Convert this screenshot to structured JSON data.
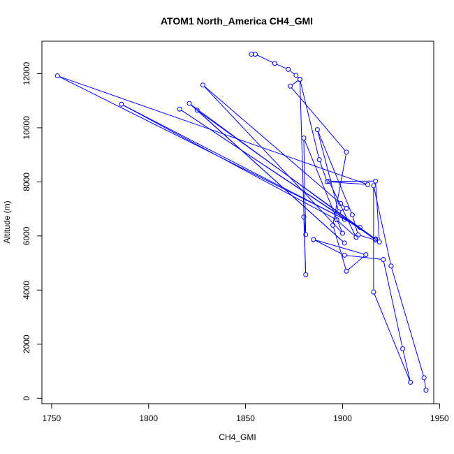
{
  "chart_data": {
    "type": "line",
    "title": "ATOM1 North_America CH4_GMI",
    "xlabel": "CH4_GMI",
    "ylabel": "Altitude (m)",
    "xlim": [
      1745,
      1947
    ],
    "ylim": [
      -200,
      13200
    ],
    "xticks": [
      1750,
      1800,
      1850,
      1900,
      1950
    ],
    "yticks": [
      0,
      2000,
      4000,
      6000,
      8000,
      10000,
      12000
    ],
    "grid": false,
    "legend": "none",
    "series": [
      {
        "color": "#0000ff",
        "marker": "open-circle",
        "points": [
          [
            1853,
            12720
          ],
          [
            1855,
            12720
          ],
          [
            1865,
            12380
          ],
          [
            1872,
            12160
          ],
          [
            1876,
            11940
          ],
          [
            1878,
            11790
          ],
          [
            1888,
            8820
          ],
          [
            1892,
            8010
          ],
          [
            1913,
            7900
          ],
          [
            1753,
            11920
          ],
          [
            1901,
            6620
          ],
          [
            1909,
            6320
          ],
          [
            1786,
            10870
          ],
          [
            1897,
            6600
          ],
          [
            1907,
            5950
          ],
          [
            1893,
            8020
          ],
          [
            1917,
            8030
          ],
          [
            1919,
            5780
          ],
          [
            1816,
            10690
          ],
          [
            1917,
            5890
          ],
          [
            1825,
            10650
          ],
          [
            1901,
            5740
          ],
          [
            1821,
            10900
          ],
          [
            1917,
            5850
          ],
          [
            1908,
            6040
          ],
          [
            1905,
            6780
          ],
          [
            1887,
            9930
          ],
          [
            1898,
            6890
          ],
          [
            1902,
            7020
          ],
          [
            1899,
            7200
          ],
          [
            1828,
            11580
          ],
          [
            1900,
            6100
          ],
          [
            1880,
            9620
          ],
          [
            1881,
            6050
          ],
          [
            1880,
            6700
          ],
          [
            1881,
            4570
          ],
          [
            1878,
            11790
          ],
          [
            1873,
            11540
          ],
          [
            1902,
            9100
          ],
          [
            1895,
            6400
          ],
          [
            1902,
            4700
          ],
          [
            1912,
            5310
          ],
          [
            1885,
            5870
          ],
          [
            1901,
            5290
          ],
          [
            1921,
            5130
          ],
          [
            1931,
            1830
          ],
          [
            1935,
            590
          ],
          [
            1916,
            3930
          ],
          [
            1916,
            7860
          ],
          [
            1925,
            4890
          ],
          [
            1942,
            760
          ],
          [
            1943,
            300
          ]
        ]
      }
    ]
  }
}
